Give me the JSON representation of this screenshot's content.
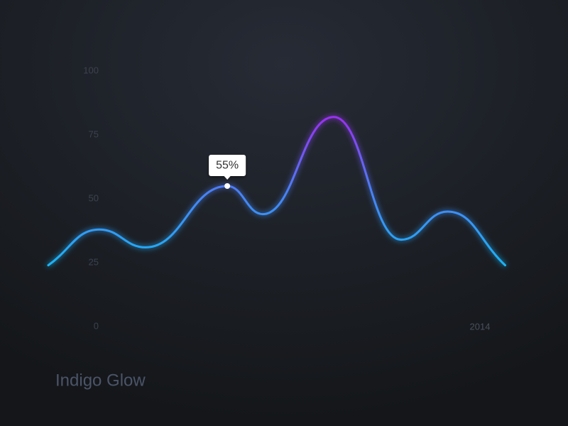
{
  "chart_data": {
    "type": "line",
    "title": "Indigo Glow",
    "x_label": "2014",
    "x": [
      0,
      1.09,
      2.08,
      3.82,
      4.58,
      6.09,
      7.53,
      8.52,
      9.75
    ],
    "series": [
      {
        "values": [
          24,
          38,
          31,
          55,
          44,
          82,
          34,
          45,
          24
        ],
        "value_labels": [
          null,
          null,
          null,
          "55%",
          null,
          null,
          null,
          null,
          null
        ],
        "colors": [
          "#1ab4f5",
          "#4a80f5",
          "#9a30f0"
        ]
      }
    ],
    "xlim": [
      0,
      9.75
    ],
    "x_grid": [
      1.5,
      2.5,
      3.5,
      4.5,
      5.5,
      6.5,
      7.5,
      8.5
    ],
    "ylim": [
      0,
      100
    ],
    "yticks": [
      0,
      25,
      50,
      75,
      100
    ]
  }
}
